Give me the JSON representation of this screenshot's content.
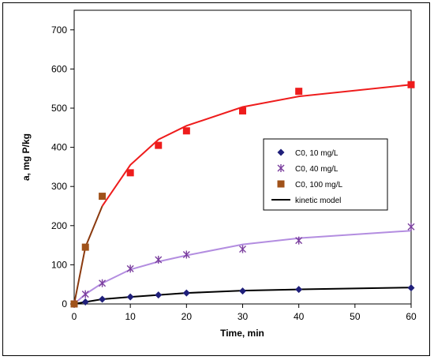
{
  "chart_data": {
    "type": "scatter",
    "xlabel": "Time, min",
    "ylabel": "a, mg P/kg",
    "xlim": [
      0,
      60
    ],
    "ylim": [
      0,
      750
    ],
    "xticks": [
      "0",
      "10",
      "20",
      "30",
      "40",
      "50",
      "60"
    ],
    "yticks": [
      "0",
      "100",
      "200",
      "300",
      "400",
      "500",
      "600",
      "700"
    ],
    "grid": false,
    "legend_placement": "right",
    "series": [
      {
        "name": "C0, 10 mg/L",
        "marker": "diamond",
        "color": "#1f1f7a",
        "x": [
          0,
          2,
          5,
          10,
          15,
          20,
          30,
          40,
          60
        ],
        "y": [
          0,
          5,
          12,
          18,
          23,
          28,
          33,
          37,
          41
        ]
      },
      {
        "name": "C0, 40 mg/L",
        "marker": "asterisk",
        "color": "#7b3f9e",
        "x": [
          0,
          2,
          5,
          10,
          15,
          20,
          30,
          40,
          60
        ],
        "y": [
          0,
          25,
          53,
          90,
          113,
          126,
          140,
          162,
          197
        ]
      },
      {
        "name": "C0, 100 mg/L",
        "marker": "square",
        "color": "#a0521a",
        "x": [
          0,
          2,
          5
        ],
        "y": [
          0,
          145,
          275
        ]
      },
      {
        "name": "",
        "marker": "square",
        "color": "#ee1c1c",
        "x": [
          10,
          15,
          20,
          30,
          40,
          60
        ],
        "y": [
          335,
          405,
          442,
          493,
          543,
          560
        ]
      }
    ],
    "model_lines": [
      {
        "name": "kinetic model",
        "color": "#000000",
        "x": [
          0,
          2,
          5,
          10,
          15,
          20,
          30,
          40,
          60
        ],
        "y": [
          0,
          5,
          12,
          18,
          23,
          28,
          34,
          37,
          42
        ]
      },
      {
        "name": "",
        "color": "#b38de0",
        "x": [
          0,
          2,
          5,
          10,
          15,
          20,
          30,
          40,
          60
        ],
        "y": [
          0,
          25,
          53,
          88,
          108,
          124,
          152,
          168,
          187
        ]
      },
      {
        "name": "",
        "color": "#8b3a0f",
        "x": [
          0,
          2,
          5
        ],
        "y": [
          0,
          145,
          250
        ]
      },
      {
        "name": "",
        "color": "#ee1c1c",
        "x": [
          5,
          10,
          15,
          20,
          30,
          40,
          60
        ],
        "y": [
          250,
          355,
          420,
          455,
          503,
          530,
          560
        ]
      }
    ],
    "legend": [
      {
        "label": "C0, 10 mg/L",
        "marker": "diamond",
        "color": "#1f1f7a"
      },
      {
        "label": "C0, 40 mg/L",
        "marker": "asterisk",
        "color": "#7b3f9e"
      },
      {
        "label": "C0, 100 mg/L",
        "marker": "square",
        "color": "#a0521a"
      },
      {
        "label": "kinetic model",
        "marker": "line",
        "color": "#000000"
      }
    ]
  }
}
